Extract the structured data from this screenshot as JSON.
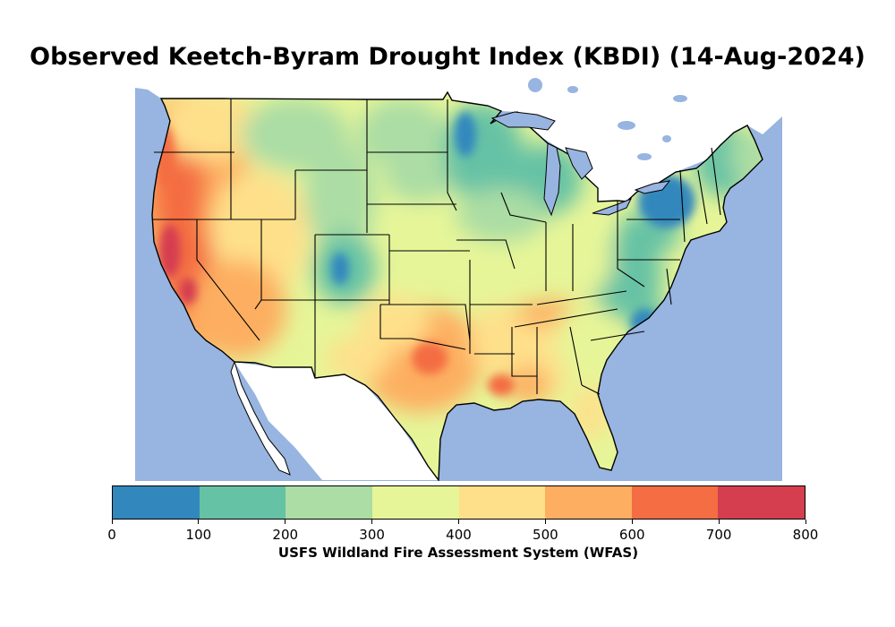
{
  "title": "Observed Keetch-Byram Drought Index (KBDI) (14-Aug-2024)",
  "colorbar": {
    "label": "USFS Wildland Fire Assessment System (WFAS)",
    "ticks": [
      "0",
      "100",
      "200",
      "300",
      "400",
      "500",
      "600",
      "700",
      "800"
    ],
    "bins": [
      {
        "range": "0-100",
        "color": "#3288bd"
      },
      {
        "range": "100-200",
        "color": "#66c2a5"
      },
      {
        "range": "200-300",
        "color": "#abdda4"
      },
      {
        "range": "300-400",
        "color": "#e6f598"
      },
      {
        "range": "400-500",
        "color": "#fee08b"
      },
      {
        "range": "500-600",
        "color": "#fdae61"
      },
      {
        "range": "600-700",
        "color": "#f46d43"
      },
      {
        "range": "700-800",
        "color": "#d53e4f"
      }
    ]
  },
  "map": {
    "region": "Contiguous United States",
    "ocean_color": "#98b4e0",
    "lake_color": "#98b4e0",
    "land_outside_color": "#ffffff",
    "border_color": "#000000"
  }
}
